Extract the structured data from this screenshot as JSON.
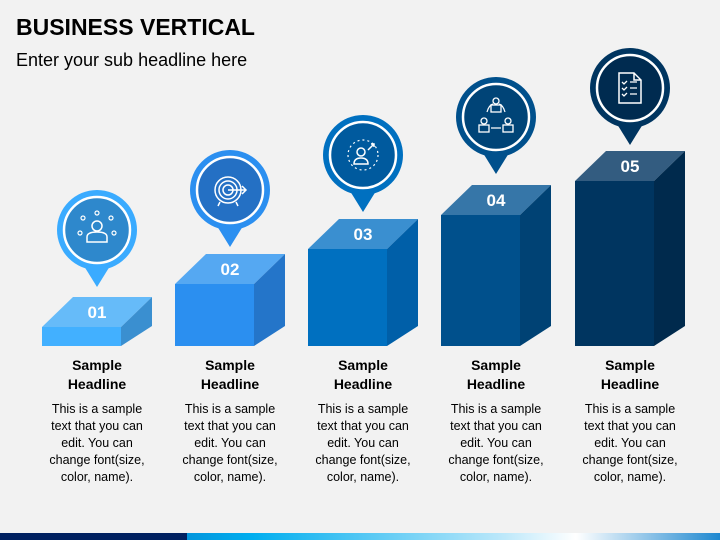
{
  "title": "BUSINESS VERTICAL",
  "subtitle": "Enter your sub headline here",
  "steps": [
    {
      "number": "01",
      "icon": "person-network-icon",
      "headline": "Sample Headline",
      "lines": [
        "This is a sample",
        "text that you can",
        "edit. You can",
        "change font(size,",
        "color, name)."
      ],
      "colors": {
        "front": "#42b0ff",
        "top": "#66bbf9",
        "side": "#3a8fd0",
        "pin": "#3aabff",
        "inner": "#2e88cc"
      }
    },
    {
      "number": "02",
      "icon": "target-icon",
      "headline": "Sample Headline",
      "lines": [
        "This is a sample",
        "text that you can",
        "edit. You can",
        "change font(size,",
        "color, name)."
      ],
      "colors": {
        "front": "#2b8ff0",
        "top": "#55a8f2",
        "side": "#2475c9",
        "pin": "#2b8ff0",
        "inner": "#2470c4"
      }
    },
    {
      "number": "03",
      "icon": "person-growth-icon",
      "headline": "Sample Headline",
      "lines": [
        "This is a sample",
        "text that you can",
        "edit. You can",
        "change font(size,",
        "color, name)."
      ],
      "colors": {
        "front": "#0070c0",
        "top": "#3a8fd0",
        "side": "#005fa8",
        "pin": "#0070c0",
        "inner": "#005a9e"
      }
    },
    {
      "number": "04",
      "icon": "team-cycle-icon",
      "headline": "Sample Headline",
      "lines": [
        "This is a sample",
        "text that you can",
        "edit. You can",
        "change font(size,",
        "color, name)."
      ],
      "colors": {
        "front": "#00508c",
        "top": "#3676a8",
        "side": "#004274",
        "pin": "#00508c",
        "inner": "#004477"
      }
    },
    {
      "number": "05",
      "icon": "checklist-document-icon",
      "headline": "Sample Headline",
      "lines": [
        "This is a sample",
        "text that you can",
        "edit. You can",
        "change font(size,",
        "color, name)."
      ],
      "colors": {
        "front": "#003560",
        "top": "#335c80",
        "side": "#002a4d",
        "pin": "#003560",
        "inner": "#002b50"
      }
    }
  ],
  "footer_colors": {
    "dark": "#002060",
    "accent": "#00aeef"
  }
}
